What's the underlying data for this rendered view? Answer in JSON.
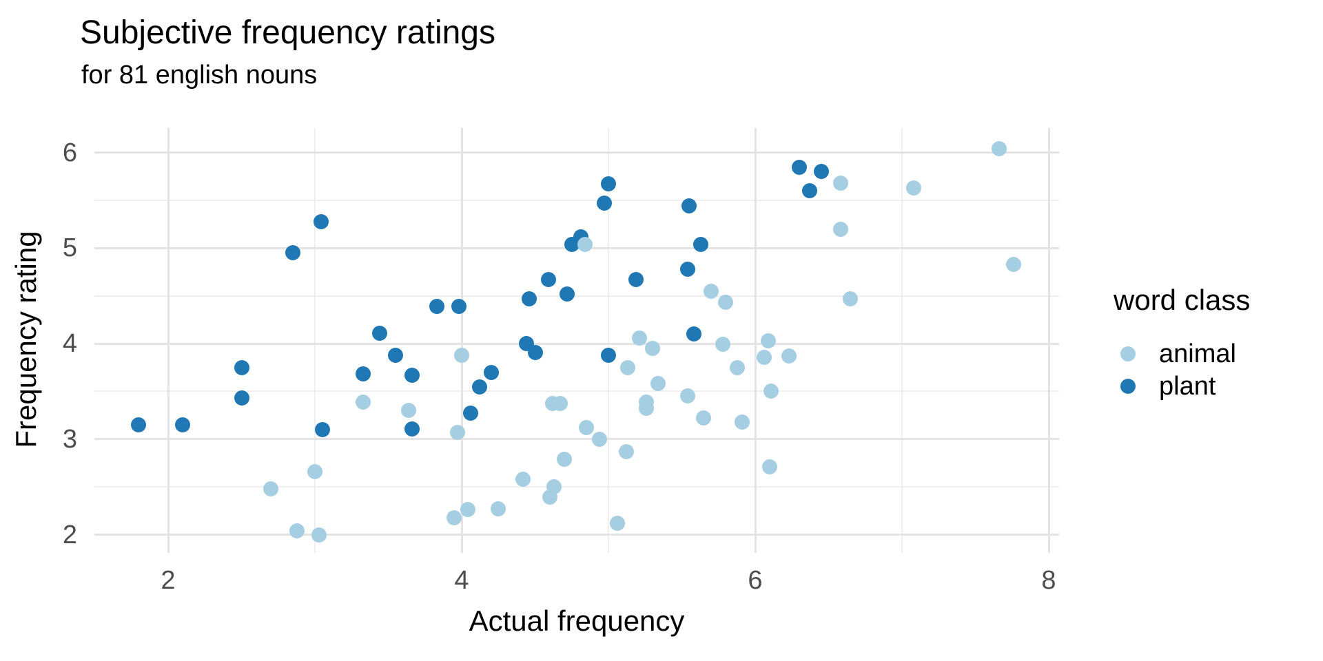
{
  "chart_data": {
    "type": "scatter",
    "title": "Subjective frequency ratings",
    "subtitle": "for 81 english nouns",
    "xlabel": "Actual frequency",
    "ylabel": "Frequency rating",
    "legend_title": "word class",
    "legend_position": "right",
    "grid": "on",
    "xlim": [
      1.5,
      8.07
    ],
    "ylim": [
      1.81,
      6.26
    ],
    "x_major_ticks": [
      2,
      4,
      6,
      8
    ],
    "x_minor_ticks": [
      3,
      5,
      7
    ],
    "y_major_ticks": [
      2,
      3,
      4,
      5,
      6
    ],
    "y_minor_ticks": [
      2.5,
      3.5,
      4.5,
      5.5
    ],
    "colors": {
      "animal": "#a6cee3",
      "plant": "#1f78b4",
      "tick_text": "#4d4d4d",
      "grid_major": "#e3e3e3",
      "grid_minor": "#efefef"
    },
    "series": [
      {
        "name": "animal",
        "color": "#a6cee3",
        "points": [
          [
            7.66,
            6.04
          ],
          [
            6.58,
            5.68
          ],
          [
            7.08,
            5.63
          ],
          [
            6.58,
            5.2
          ],
          [
            4.84,
            5.04
          ],
          [
            7.76,
            4.83
          ],
          [
            6.65,
            4.47
          ],
          [
            5.7,
            4.55
          ],
          [
            5.8,
            4.43
          ],
          [
            5.21,
            4.06
          ],
          [
            5.3,
            3.95
          ],
          [
            5.78,
            3.99
          ],
          [
            6.09,
            4.03
          ],
          [
            6.06,
            3.86
          ],
          [
            6.23,
            3.87
          ],
          [
            5.88,
            3.75
          ],
          [
            6.11,
            3.5
          ],
          [
            5.13,
            3.75
          ],
          [
            5.34,
            3.58
          ],
          [
            5.54,
            3.45
          ],
          [
            5.26,
            3.39
          ],
          [
            5.26,
            3.32
          ],
          [
            5.65,
            3.22
          ],
          [
            5.91,
            3.18
          ],
          [
            4.0,
            3.88
          ],
          [
            3.97,
            3.07
          ],
          [
            3.64,
            3.3
          ],
          [
            3.33,
            3.39
          ],
          [
            4.62,
            3.37
          ],
          [
            4.67,
            3.37
          ],
          [
            4.85,
            3.12
          ],
          [
            4.94,
            3.0
          ],
          [
            4.7,
            2.79
          ],
          [
            5.12,
            2.87
          ],
          [
            4.42,
            2.58
          ],
          [
            4.63,
            2.5
          ],
          [
            4.6,
            2.39
          ],
          [
            4.04,
            2.26
          ],
          [
            3.95,
            2.18
          ],
          [
            4.25,
            2.27
          ],
          [
            3.0,
            2.66
          ],
          [
            2.7,
            2.48
          ],
          [
            2.88,
            2.04
          ],
          [
            3.03,
            2.0
          ],
          [
            5.06,
            2.12
          ],
          [
            6.1,
            2.71
          ]
        ]
      },
      {
        "name": "plant",
        "color": "#1f78b4",
        "points": [
          [
            1.8,
            3.15
          ],
          [
            2.1,
            3.15
          ],
          [
            2.5,
            3.75
          ],
          [
            2.5,
            3.43
          ],
          [
            2.85,
            4.95
          ],
          [
            3.04,
            5.28
          ],
          [
            3.05,
            3.1
          ],
          [
            3.33,
            3.68
          ],
          [
            3.44,
            4.11
          ],
          [
            3.55,
            3.88
          ],
          [
            3.66,
            3.67
          ],
          [
            3.66,
            3.11
          ],
          [
            3.83,
            4.39
          ],
          [
            3.98,
            4.39
          ],
          [
            4.06,
            3.27
          ],
          [
            4.12,
            3.55
          ],
          [
            4.2,
            3.7
          ],
          [
            4.44,
            4.0
          ],
          [
            4.5,
            3.91
          ],
          [
            4.46,
            4.47
          ],
          [
            4.59,
            4.67
          ],
          [
            4.72,
            4.52
          ],
          [
            4.75,
            5.04
          ],
          [
            4.81,
            5.12
          ],
          [
            4.97,
            5.47
          ],
          [
            5.0,
            5.67
          ],
          [
            5.0,
            3.88
          ],
          [
            5.19,
            4.67
          ],
          [
            5.54,
            4.78
          ],
          [
            5.55,
            5.44
          ],
          [
            5.63,
            5.04
          ],
          [
            5.58,
            4.1
          ],
          [
            6.3,
            5.85
          ],
          [
            6.45,
            5.8
          ],
          [
            6.37,
            5.6
          ]
        ]
      }
    ]
  }
}
